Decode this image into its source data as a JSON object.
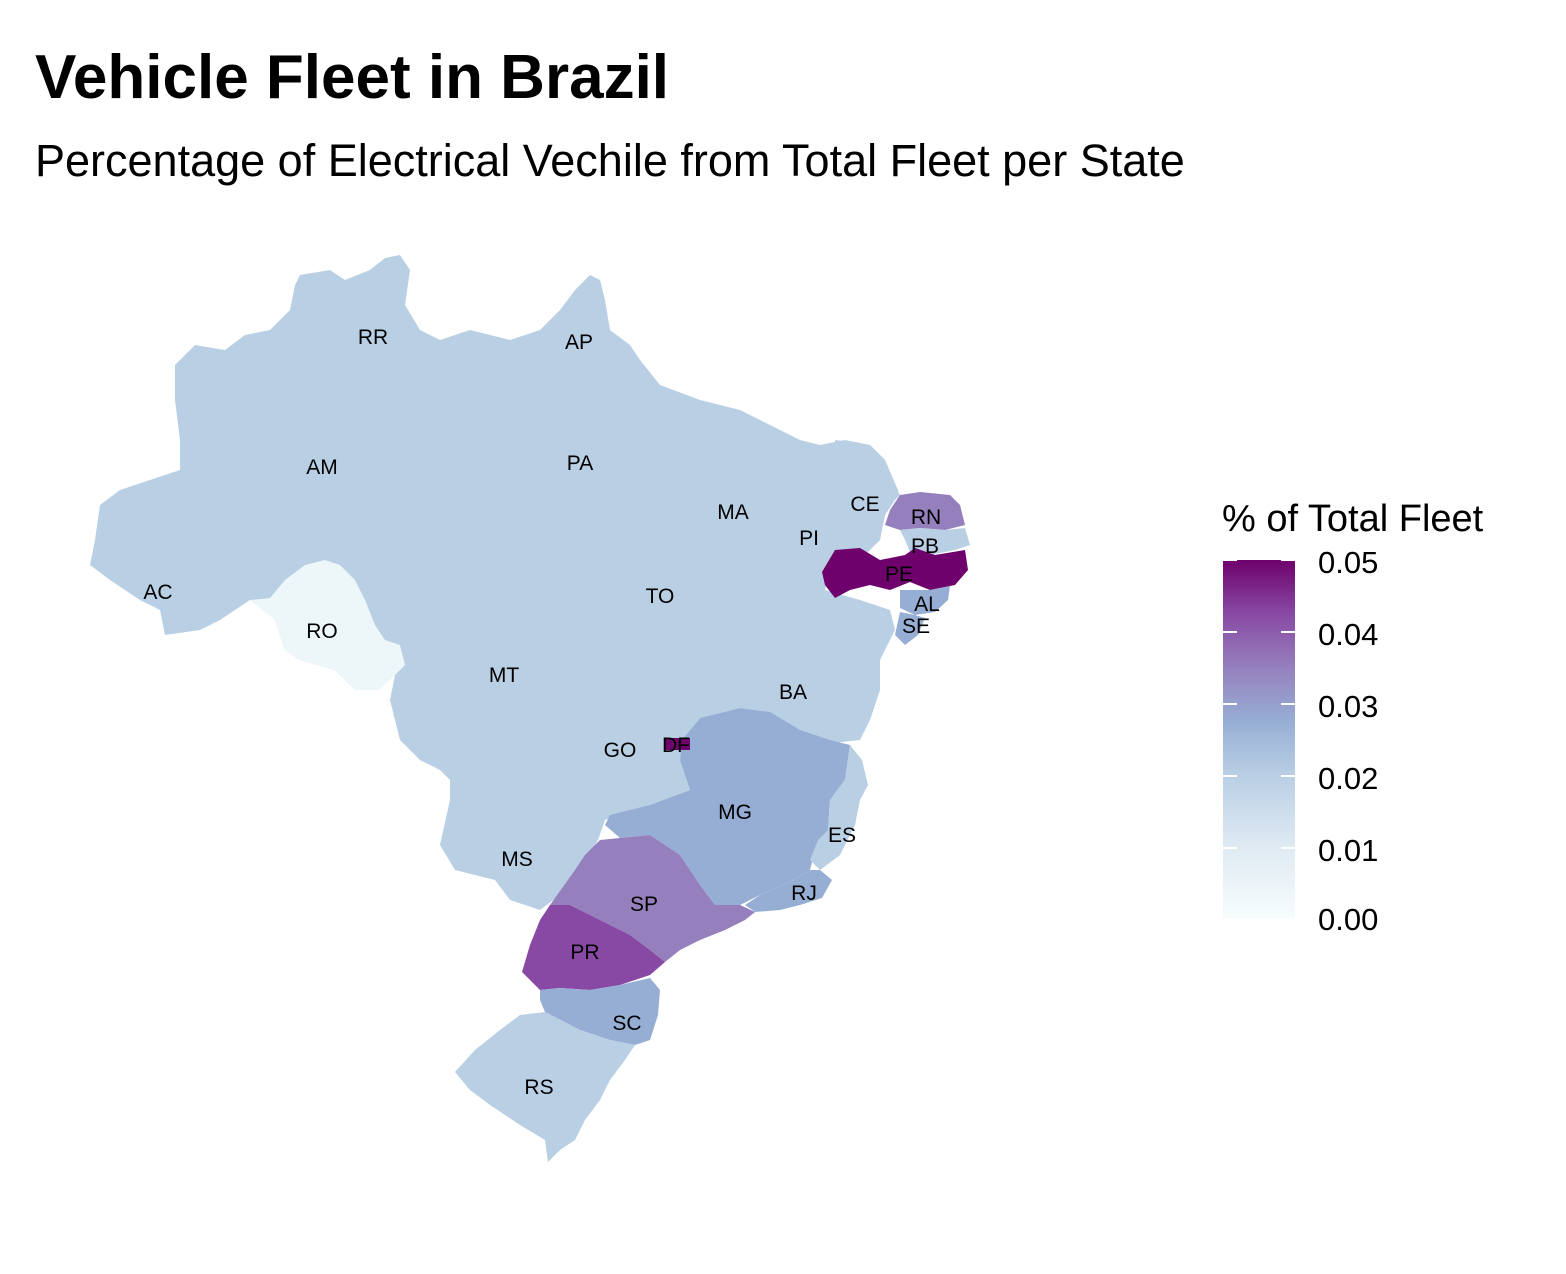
{
  "title": "Vehicle Fleet in Brazil",
  "subtitle": "Percentage of Electrical Vechile from Total Fleet per State",
  "legend": {
    "title": "% of Total Fleet",
    "ticks": [
      "0.05",
      "0.04",
      "0.03",
      "0.02",
      "0.01",
      "0.00"
    ],
    "range": [
      0.0,
      0.05
    ],
    "color_low": "#f7fcfd",
    "color_mid": "#9ebcda",
    "color_high": "#6e016b"
  },
  "states": {
    "RR": {
      "label": "RR",
      "value": 0.012
    },
    "AP": {
      "label": "AP",
      "value": 0.012
    },
    "AM": {
      "label": "AM",
      "value": 0.012
    },
    "PA": {
      "label": "PA",
      "value": 0.012
    },
    "MA": {
      "label": "MA",
      "value": 0.012
    },
    "CE": {
      "label": "CE",
      "value": 0.012
    },
    "RN": {
      "label": "RN",
      "value": 0.031
    },
    "PB": {
      "label": "PB",
      "value": 0.012
    },
    "PI": {
      "label": "PI",
      "value": 0.012
    },
    "PE": {
      "label": "PE",
      "value": 0.05
    },
    "AL": {
      "label": "AL",
      "value": 0.021
    },
    "SE": {
      "label": "SE",
      "value": 0.021
    },
    "AC": {
      "label": "AC",
      "value": 0.012
    },
    "RO": {
      "label": "RO",
      "value": 0.002
    },
    "TO": {
      "label": "TO",
      "value": 0.012
    },
    "MT": {
      "label": "MT",
      "value": 0.012
    },
    "BA": {
      "label": "BA",
      "value": 0.012
    },
    "GO": {
      "label": "GO",
      "value": 0.012
    },
    "DF": {
      "label": "DF",
      "value": 0.05
    },
    "MG": {
      "label": "MG",
      "value": 0.021
    },
    "ES": {
      "label": "ES",
      "value": 0.012
    },
    "MS": {
      "label": "MS",
      "value": 0.012
    },
    "RJ": {
      "label": "RJ",
      "value": 0.021
    },
    "SP": {
      "label": "SP",
      "value": 0.031
    },
    "PR": {
      "label": "PR",
      "value": 0.04
    },
    "SC": {
      "label": "SC",
      "value": 0.021
    },
    "RS": {
      "label": "RS",
      "value": 0.012
    }
  }
}
